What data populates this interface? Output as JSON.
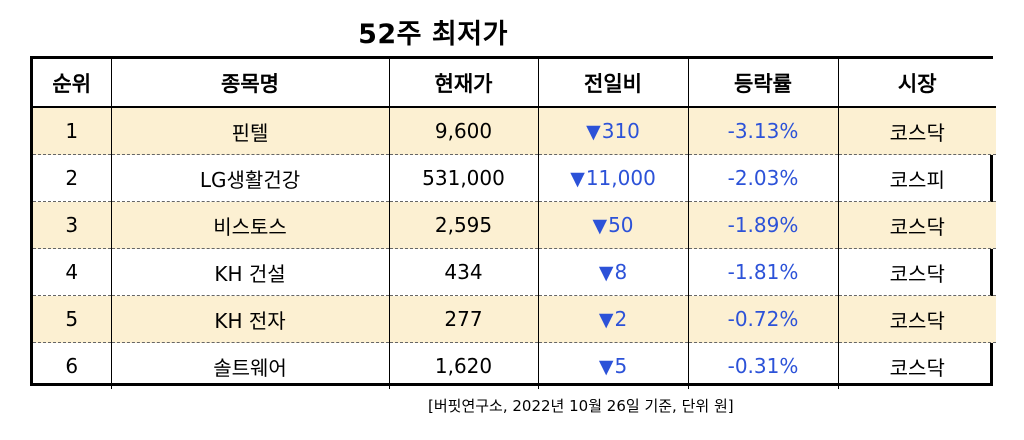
{
  "title": "52주 최저가",
  "headers": [
    "순위",
    "종목명",
    "현재가",
    "전일비",
    "등락률",
    "시장"
  ],
  "rows": [
    {
      "rank": "1",
      "name": "핀텔",
      "price": "9,600",
      "change": "310",
      "rate": "-3.13%",
      "market": "코스닥"
    },
    {
      "rank": "2",
      "name": "LG생활건강",
      "price": "531,000",
      "change": "11,000",
      "rate": "-2.03%",
      "market": "코스피"
    },
    {
      "rank": "3",
      "name": "비스토스",
      "price": "2,595",
      "change": "50",
      "rate": "-1.89%",
      "market": "코스닥"
    },
    {
      "rank": "4",
      "name": "KH 건설",
      "price": "434",
      "change": "8",
      "rate": "-1.81%",
      "market": "코스닥"
    },
    {
      "rank": "5",
      "name": "KH 전자",
      "price": "277",
      "change": "2",
      "rate": "-0.72%",
      "market": "코스닥"
    },
    {
      "rank": "6",
      "name": "솔트웨어",
      "price": "1,620",
      "change": "5",
      "rate": "-0.31%",
      "market": "코스닥"
    }
  ],
  "down_symbol": "▼",
  "source": "[버핏연구소, 2022년 10월 26일 기준, 단위 원]",
  "colors": {
    "shade": "#fcf0d2",
    "down": "#2c52d8"
  }
}
